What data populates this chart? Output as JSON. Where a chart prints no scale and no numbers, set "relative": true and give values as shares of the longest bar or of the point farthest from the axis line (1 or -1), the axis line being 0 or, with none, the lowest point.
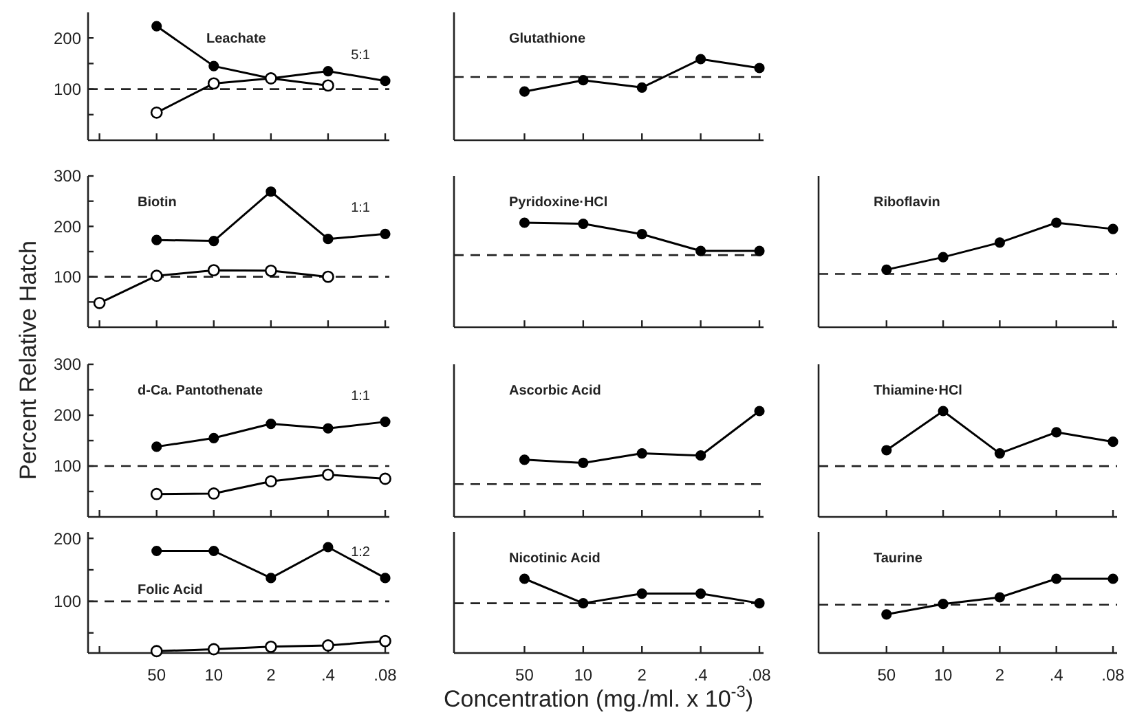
{
  "chart_data": [
    {
      "type": "line",
      "title": "Leachate",
      "ylabel": "Percent Relative Hatch",
      "categories": [
        null,
        null,
        null,
        null,
        null,
        null
      ],
      "ylim": [
        0,
        250
      ],
      "yticks": [
        {
          "value": 50,
          "label": null
        },
        100,
        {
          "value": 150,
          "label": null
        },
        200
      ],
      "tick_labels": "y",
      "marker": "circle",
      "ref_lines": [
        {
          "axis": "y",
          "value": 100,
          "line_style": "dashed"
        }
      ],
      "annotations": [
        "5:1"
      ],
      "series": [
        {
          "color": "#000000",
          "values": [
            null,
            223,
            145,
            121,
            135,
            116
          ]
        },
        {
          "color": "#000000",
          "marker": "circle-open",
          "values": [
            null,
            54,
            111,
            121,
            107,
            null
          ]
        }
      ]
    },
    {
      "type": "line",
      "title": "Glutathione",
      "categories": [
        null,
        null,
        null,
        null,
        null
      ],
      "relative": true,
      "marker": "circle",
      "ref_lines": [
        {
          "axis": "y",
          "value": 0.78,
          "line_style": "dashed"
        }
      ],
      "series": [
        {
          "color": "#000000",
          "values": [
            0.6,
            0.74,
            0.65,
            1,
            0.89
          ]
        }
      ]
    },
    {
      "type": "line",
      "title": "Biotin",
      "categories": [
        null,
        null,
        null,
        null,
        null,
        null
      ],
      "ylim": [
        0,
        300
      ],
      "yticks": [
        {
          "value": 50,
          "label": null
        },
        100,
        {
          "value": 150,
          "label": null
        },
        200,
        {
          "value": 250,
          "label": null
        },
        300
      ],
      "tick_labels": "y",
      "marker": "circle",
      "ref_lines": [
        {
          "axis": "y",
          "value": 100,
          "line_style": "dashed"
        }
      ],
      "annotations": [
        "1:1"
      ],
      "series": [
        {
          "color": "#000000",
          "values": [
            null,
            173,
            171,
            269,
            175,
            185
          ]
        },
        {
          "color": "#000000",
          "marker": "circle-open",
          "values": [
            48,
            102,
            113,
            112,
            100,
            null
          ]
        }
      ]
    },
    {
      "type": "line",
      "title": "Pyridoxine·HCl",
      "categories": [
        null,
        null,
        null,
        null,
        null
      ],
      "relative": true,
      "marker": "circle",
      "ref_lines": [
        {
          "axis": "y",
          "value": 0.69,
          "line_style": "dashed"
        }
      ],
      "series": [
        {
          "color": "#000000",
          "values": [
            1,
            0.99,
            0.89,
            0.73,
            0.73
          ]
        }
      ]
    },
    {
      "type": "line",
      "title": "Riboflavin",
      "categories": [
        null,
        null,
        null,
        null,
        null
      ],
      "relative": true,
      "marker": "circle",
      "ref_lines": [
        {
          "axis": "y",
          "value": 0.51,
          "line_style": "dashed"
        }
      ],
      "series": [
        {
          "color": "#000000",
          "values": [
            0.55,
            0.67,
            0.81,
            1,
            0.94
          ]
        }
      ]
    },
    {
      "type": "line",
      "title": "d-Ca. Pantothenate",
      "categories": [
        null,
        null,
        null,
        null,
        null,
        null
      ],
      "ylim": [
        0,
        300
      ],
      "yticks": [
        {
          "value": 50,
          "label": null
        },
        100,
        {
          "value": 150,
          "label": null
        },
        200,
        {
          "value": 250,
          "label": null
        },
        300
      ],
      "tick_labels": "y",
      "marker": "circle",
      "ref_lines": [
        {
          "axis": "y",
          "value": 100,
          "line_style": "dashed"
        }
      ],
      "annotations": [
        "1:1"
      ],
      "series": [
        {
          "color": "#000000",
          "values": [
            null,
            138,
            155,
            183,
            174,
            187
          ]
        },
        {
          "color": "#000000",
          "marker": "circle-open",
          "values": [
            null,
            45,
            46,
            70,
            83,
            75
          ]
        }
      ]
    },
    {
      "type": "line",
      "title": "Ascorbic Acid",
      "categories": [
        null,
        null,
        null,
        null,
        null
      ],
      "relative": true,
      "marker": "circle",
      "ref_lines": [
        {
          "axis": "y",
          "value": 0.31,
          "line_style": "dashed"
        }
      ],
      "series": [
        {
          "color": "#000000",
          "values": [
            0.54,
            0.51,
            0.6,
            0.58,
            1
          ]
        }
      ]
    },
    {
      "type": "line",
      "title": "Thiamine·HCl",
      "categories": [
        null,
        null,
        null,
        null,
        null
      ],
      "relative": true,
      "marker": "circle",
      "ref_lines": [
        {
          "axis": "y",
          "value": 0.48,
          "line_style": "dashed"
        }
      ],
      "series": [
        {
          "color": "#000000",
          "values": [
            0.63,
            1,
            0.6,
            0.8,
            0.71
          ]
        }
      ]
    },
    {
      "type": "line",
      "title": "Folic Acid",
      "categories": [
        null,
        "50",
        "10",
        "2",
        ".4",
        ".08"
      ],
      "ylim": [
        18,
        210
      ],
      "yticks": [
        {
          "value": 50,
          "label": null
        },
        100,
        {
          "value": 150,
          "label": null
        },
        200
      ],
      "marker": "circle",
      "ref_lines": [
        {
          "axis": "y",
          "value": 100,
          "line_style": "dashed"
        }
      ],
      "annotations": [
        "1:2"
      ],
      "series": [
        {
          "color": "#000000",
          "values": [
            null,
            180,
            180,
            137,
            186,
            137
          ]
        },
        {
          "color": "#000000",
          "marker": "circle-open",
          "values": [
            null,
            21,
            24,
            28,
            30,
            37
          ]
        }
      ]
    },
    {
      "type": "line",
      "title": "Nicotinic Acid",
      "xlabel": "Concentration (mg./ml. x 10$^{-3}$)",
      "categories": [
        "50",
        "10",
        "2",
        ".4",
        ".08"
      ],
      "relative": true,
      "marker": "circle",
      "ref_lines": [
        {
          "axis": "y",
          "value": 0.67,
          "line_style": "dashed"
        }
      ],
      "series": [
        {
          "color": "#000000",
          "values": [
            1,
            0.67,
            0.8,
            0.8,
            0.67
          ]
        }
      ]
    },
    {
      "type": "line",
      "title": "Taurine",
      "categories": [
        "50",
        "10",
        "2",
        ".4",
        ".08"
      ],
      "relative": true,
      "marker": "circle",
      "ref_lines": [
        {
          "axis": "y",
          "value": 0.65,
          "line_style": "dashed"
        }
      ],
      "series": [
        {
          "color": "#000000",
          "values": [
            0.52,
            0.66,
            0.75,
            1,
            1
          ]
        }
      ]
    }
  ]
}
